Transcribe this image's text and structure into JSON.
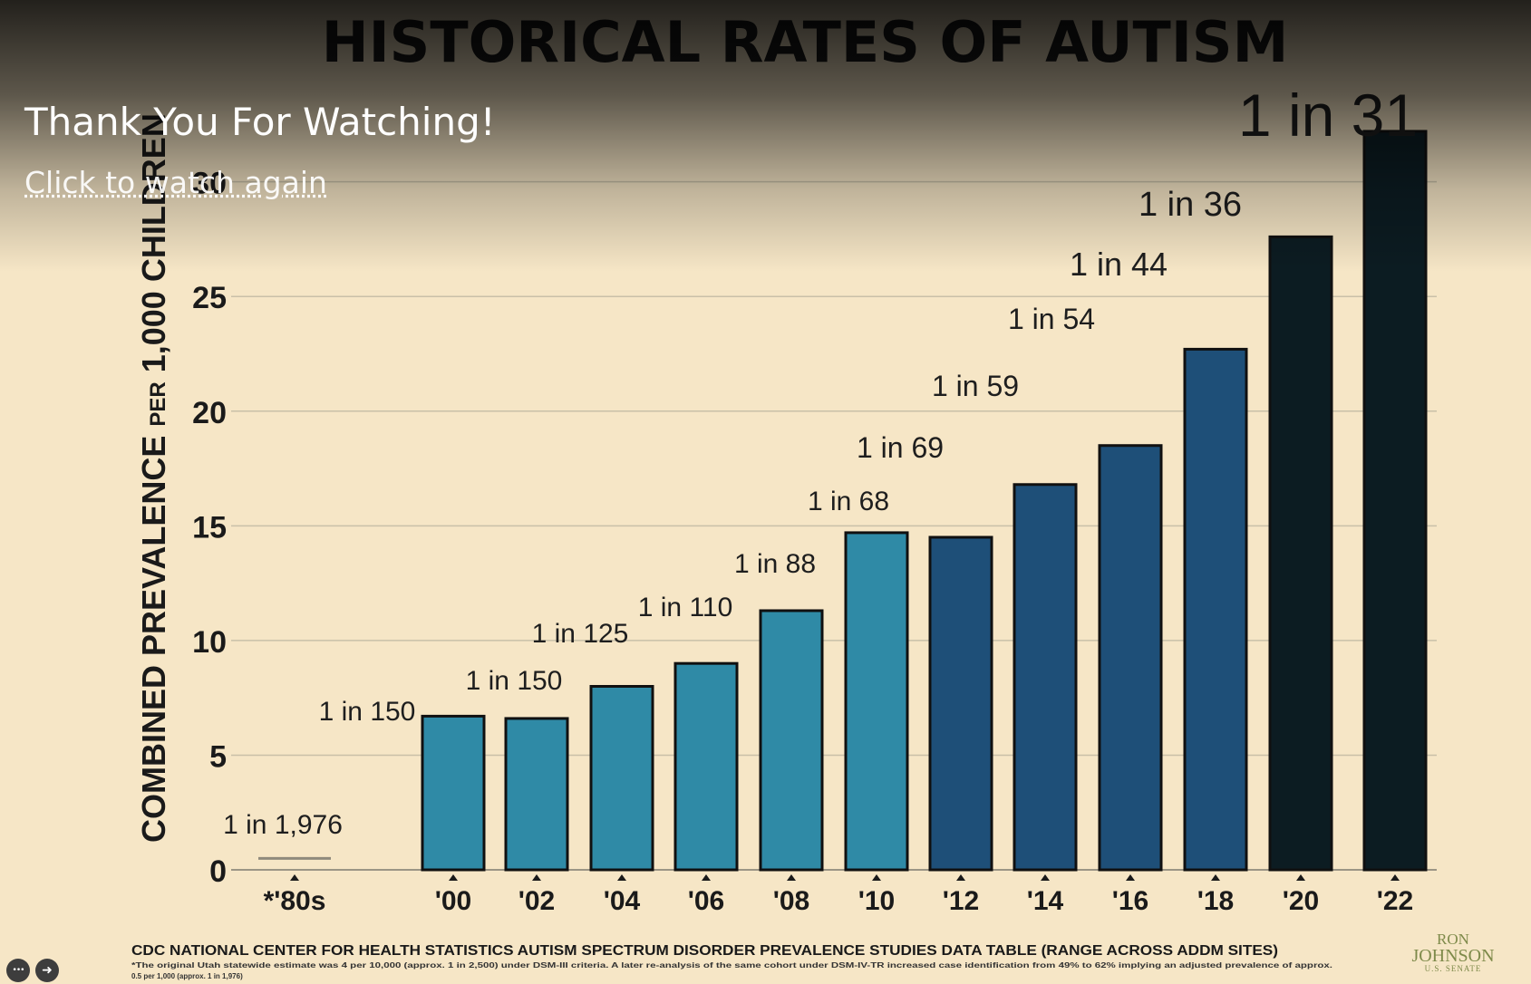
{
  "chart_data": {
    "type": "bar",
    "title": "HISTORICAL RATES OF AUTISM",
    "ylabel": "COMBINED PREVALENCE PER 1,000 CHILDREN",
    "ylabel_main": "COMBINED PREVALENCE",
    "ylabel_small": "PER",
    "ylabel_tail": "1,000 CHILDREN",
    "ylim": [
      0,
      32
    ],
    "yticks": [
      0,
      5,
      10,
      15,
      20,
      25,
      30
    ],
    "grid": true,
    "categories": [
      "*'80s",
      "'00",
      "'02",
      "'04",
      "'06",
      "'08",
      "'10",
      "'12",
      "'14",
      "'16",
      "'18",
      "'20",
      "'22"
    ],
    "values": [
      0.5,
      6.7,
      6.6,
      8.0,
      9.0,
      11.3,
      14.7,
      14.5,
      16.8,
      18.5,
      22.7,
      27.6,
      32.2
    ],
    "rate_labels": [
      "1 in 1,976",
      "1 in 150",
      "1 in 150",
      "1 in 125",
      "1 in 110",
      "1 in 88",
      "1 in 68",
      "1 in 69",
      "1 in 59",
      "1 in 54",
      "1 in 44",
      "1 in 36",
      "1 in 31"
    ],
    "bar_colors": [
      "#2f8aa6",
      "#2f8aa6",
      "#2f8aa6",
      "#2f8aa6",
      "#2f8aa6",
      "#2f8aa6",
      "#2f8aa6",
      "#1e4f78",
      "#1e4f78",
      "#1e4f78",
      "#1e4f78",
      "#0c1c22",
      "#0c1c22"
    ],
    "source": "CDC NATIONAL CENTER FOR HEALTH STATISTICS AUTISM SPECTRUM DISORDER PREVALENCE STUDIES DATA TABLE (RANGE ACROSS ADDM SITES)",
    "footnote_1": "*The original Utah statewide estimate was 4 per 10,000 (approx. 1 in 2,500) under DSM-III criteria. A later re-analysis of the same cohort under DSM-IV-TR increased case identification from 49% to 62% implying an adjusted prevalence of approx.",
    "footnote_2": "0.5 per 1,000 (approx. 1 in 1,976)"
  },
  "overlay": {
    "thanks": "Thank You For Watching!",
    "watch_again": "Click to watch again"
  },
  "controls": {
    "more_icon": "more-icon",
    "share_icon": "share-icon",
    "more_glyph": "•••",
    "share_glyph": "➜"
  },
  "logo": {
    "line1": "RON",
    "line2": "JOHNSON",
    "line3": "U.S. SENATE"
  }
}
